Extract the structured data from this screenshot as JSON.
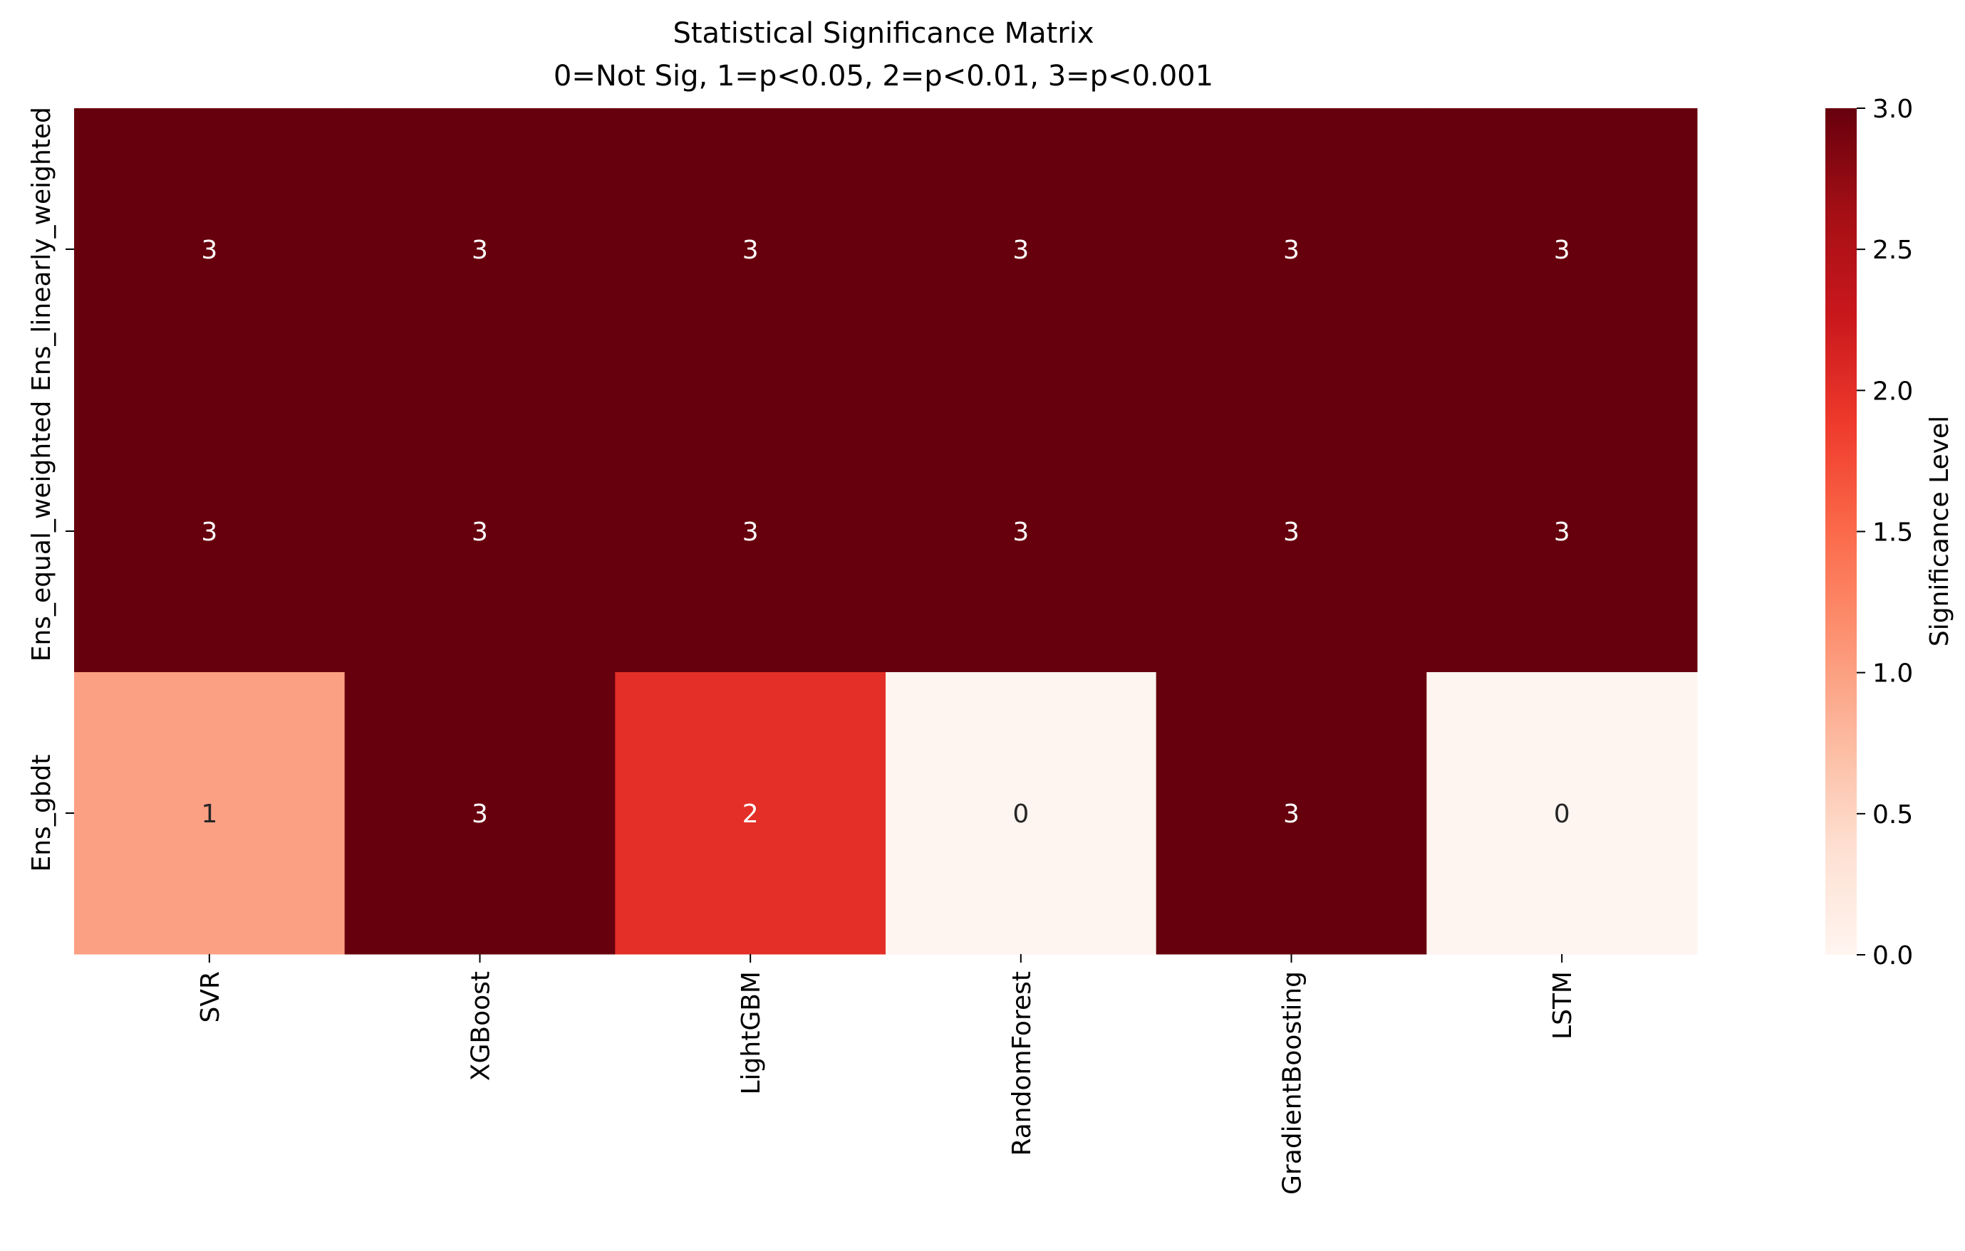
{
  "chart_data": {
    "type": "heatmap",
    "title": "Statistical Significance Matrix",
    "subtitle": "0=Not Sig, 1=p<0.05, 2=p<0.01, 3=p<0.001",
    "x_categories": [
      "SVR",
      "XGBoost",
      "LightGBM",
      "RandomForest",
      "GradientBoosting",
      "LSTM"
    ],
    "y_categories": [
      "Ens_linearly_weighted",
      "Ens_equal_weighted",
      "Ens_gbdt"
    ],
    "values": [
      [
        3,
        3,
        3,
        3,
        3,
        3
      ],
      [
        3,
        3,
        3,
        3,
        3,
        3
      ],
      [
        1,
        3,
        2,
        0,
        3,
        0
      ]
    ],
    "colormap": "Reds",
    "vmin": 0,
    "vmax": 3,
    "colorbar": {
      "label": "Significance Level",
      "ticks": [
        "0.0",
        "0.5",
        "1.0",
        "1.5",
        "2.0",
        "2.5",
        "3.0"
      ]
    },
    "colors": {
      "0": "#fff5f0",
      "1": "#fca083",
      "2": "#e32f27",
      "3": "#67000d"
    },
    "annotations": true,
    "grid": false
  }
}
